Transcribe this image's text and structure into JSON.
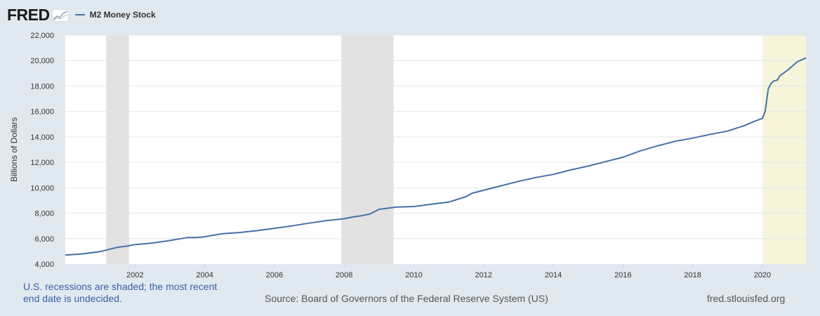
{
  "logo": {
    "text": "FRED",
    "icon": "fred-graph-icon"
  },
  "colors": {
    "line": "#4572a7",
    "recession": "#e2e2e2",
    "undecided": "#f6f5dc",
    "background": "#e1e9f0"
  },
  "footer": {
    "note": "U.S. recessions are shaded; the most recent end date is undecided.",
    "source": "Source: Board of Governors of the Federal Reserve System (US)",
    "url": "fred.stlouisfed.org"
  },
  "chart_data": {
    "type": "line",
    "title": "",
    "xlabel": "",
    "ylabel": "Billions of Dollars",
    "xlim": [
      2000.0,
      2021.25
    ],
    "ylim": [
      4000,
      22000
    ],
    "yticks": [
      4000,
      6000,
      8000,
      10000,
      12000,
      14000,
      16000,
      18000,
      20000,
      22000
    ],
    "ytick_labels": [
      "4,000",
      "6,000",
      "8,000",
      "10,000",
      "12,000",
      "14,000",
      "16,000",
      "18,000",
      "20,000",
      "22,000"
    ],
    "xticks": [
      2002,
      2004,
      2006,
      2008,
      2010,
      2012,
      2014,
      2016,
      2018,
      2020
    ],
    "xtick_labels": [
      "2002",
      "2004",
      "2006",
      "2008",
      "2010",
      "2012",
      "2014",
      "2016",
      "2018",
      "2020"
    ],
    "grid": true,
    "legend": "top-left",
    "recessions": [
      {
        "start": 2001.17,
        "end": 2001.83
      },
      {
        "start": 2007.92,
        "end": 2009.42
      }
    ],
    "undecided_recession": {
      "start": 2020.0,
      "end": 2021.25
    },
    "series": [
      {
        "name": "M2 Money Stock",
        "x": [
          2000.0,
          2000.5,
          2001.0,
          2001.25,
          2001.5,
          2001.75,
          2002.0,
          2002.5,
          2003.0,
          2003.5,
          2003.75,
          2004.0,
          2004.5,
          2005.0,
          2005.5,
          2006.0,
          2006.5,
          2007.0,
          2007.5,
          2008.0,
          2008.25,
          2008.5,
          2008.75,
          2009.0,
          2009.5,
          2010.0,
          2010.5,
          2011.0,
          2011.5,
          2011.67,
          2012.0,
          2012.5,
          2013.0,
          2013.5,
          2014.0,
          2014.5,
          2015.0,
          2015.5,
          2016.0,
          2016.5,
          2017.0,
          2017.5,
          2018.0,
          2018.5,
          2019.0,
          2019.5,
          2019.75,
          2020.0,
          2020.08,
          2020.17,
          2020.25,
          2020.33,
          2020.42,
          2020.5,
          2020.75,
          2021.0,
          2021.25
        ],
        "values": [
          4700,
          4800,
          4980,
          5150,
          5320,
          5400,
          5530,
          5650,
          5850,
          6080,
          6080,
          6150,
          6380,
          6480,
          6620,
          6810,
          7000,
          7220,
          7420,
          7560,
          7700,
          7800,
          7950,
          8300,
          8480,
          8520,
          8700,
          8870,
          9300,
          9570,
          9800,
          10150,
          10500,
          10800,
          11050,
          11400,
          11700,
          12050,
          12400,
          12900,
          13300,
          13650,
          13900,
          14200,
          14450,
          14900,
          15200,
          15450,
          16000,
          17800,
          18200,
          18400,
          18450,
          18800,
          19300,
          19900,
          20200
        ]
      }
    ]
  }
}
